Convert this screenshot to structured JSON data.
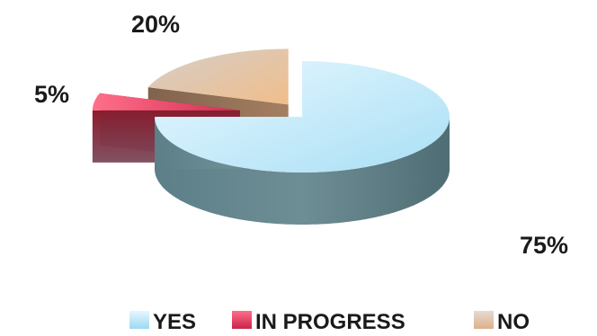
{
  "chart_data": {
    "type": "pie",
    "title": "",
    "categories": [
      "YES",
      "IN PROGRESS",
      "NO"
    ],
    "values": [
      75,
      5,
      20
    ],
    "data_labels": [
      "75%",
      "5%",
      "20%"
    ],
    "colors": {
      "YES": "#c5ecfb",
      "IN PROGRESS": "#e8506c",
      "NO": "#e6c3a3"
    },
    "legend_position": "bottom",
    "style": "3d-exploded"
  }
}
